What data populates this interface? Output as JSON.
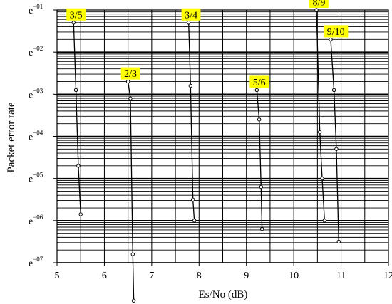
{
  "chart_data": {
    "type": "line",
    "title": "",
    "xlabel": "Es/No (dB)",
    "ylabel": "Packet error rate",
    "xlim": [
      5,
      12
    ],
    "ylim": [
      -7,
      -1
    ],
    "y_scale": "log",
    "x_ticks": [
      5,
      6,
      7,
      8,
      9,
      10,
      11,
      12
    ],
    "y_ticks": [
      {
        "exp": -1,
        "base": "e",
        "sup": "−01"
      },
      {
        "exp": -2,
        "base": "e",
        "sup": "−02"
      },
      {
        "exp": -3,
        "base": "e",
        "sup": "−03"
      },
      {
        "exp": -4,
        "base": "e",
        "sup": "−04"
      },
      {
        "exp": -5,
        "base": "e",
        "sup": "−05"
      },
      {
        "exp": -6,
        "base": "e",
        "sup": "−06"
      },
      {
        "exp": -7,
        "base": "e",
        "sup": "−07"
      }
    ],
    "grid": true,
    "series": [
      {
        "name": "3/5",
        "x": [
          5.35,
          5.4,
          5.45,
          5.5
        ],
        "y_exp": [
          -1.3,
          -2.9,
          -4.7,
          -5.85
        ]
      },
      {
        "name": "2/3",
        "x": [
          6.5,
          6.55,
          6.6,
          6.62
        ],
        "y_exp": [
          -2.7,
          -3.1,
          -6.8,
          -7.9
        ]
      },
      {
        "name": "3/4",
        "x": [
          7.78,
          7.82,
          7.87,
          7.9
        ],
        "y_exp": [
          -1.3,
          -2.8,
          -5.5,
          -6.0
        ]
      },
      {
        "name": "5/6",
        "x": [
          9.22,
          9.27,
          9.31,
          9.33
        ],
        "y_exp": [
          -2.9,
          -3.6,
          -5.2,
          -6.2
        ]
      },
      {
        "name": "8/9",
        "x": [
          10.48,
          10.55,
          10.6,
          10.65
        ],
        "y_exp": [
          -1.0,
          -3.9,
          -5.0,
          -6.0
        ]
      },
      {
        "name": "9/10",
        "x": [
          10.78,
          10.85,
          10.9,
          10.95
        ],
        "y_exp": [
          -1.7,
          -2.9,
          -4.3,
          -6.5
        ]
      }
    ]
  }
}
